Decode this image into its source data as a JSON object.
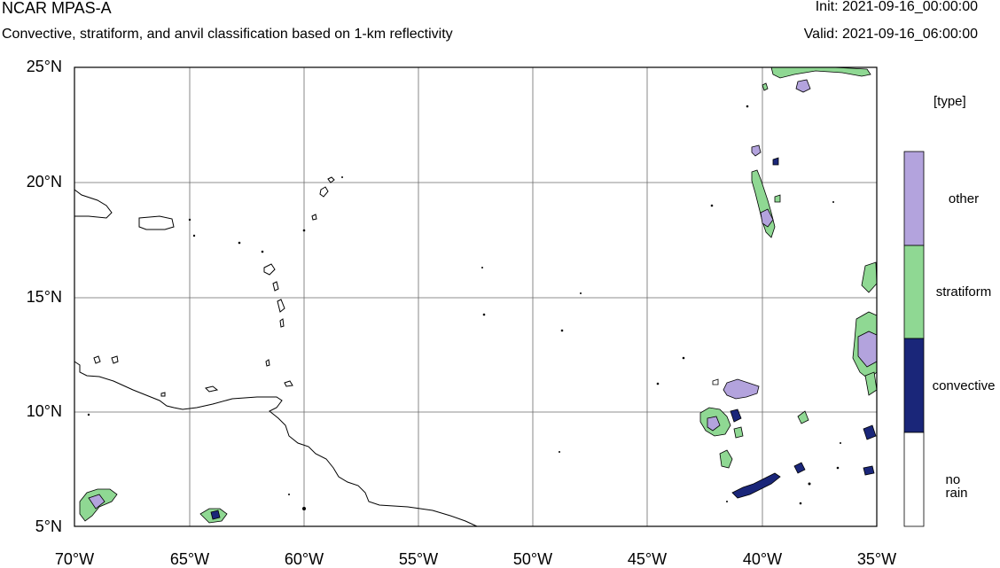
{
  "header": {
    "model": "NCAR MPAS-A",
    "description": "Convective, stratiform, and anvil classification based on 1-km reflectivity",
    "init": "Init: 2021-09-16_00:00:00",
    "valid": "Valid: 2021-09-16_06:00:00"
  },
  "map": {
    "lat_labels": [
      "25°N",
      "20°N",
      "15°N",
      "10°N",
      "5°N"
    ],
    "lon_labels": [
      "70°W",
      "65°W",
      "60°W",
      "55°W",
      "50°W",
      "45°W",
      "40°W",
      "35°W"
    ],
    "extent": {
      "lon": [
        -70,
        -35
      ],
      "lat": [
        5,
        25
      ]
    }
  },
  "legend": {
    "unit": "[type]",
    "classes": [
      {
        "label": "other",
        "color": "#b3a3dd"
      },
      {
        "label": "stratiform",
        "color": "#8fd893"
      },
      {
        "label": "convective",
        "color": "#1a2679"
      },
      {
        "label": "no rain",
        "color": "#ffffff"
      }
    ]
  }
}
